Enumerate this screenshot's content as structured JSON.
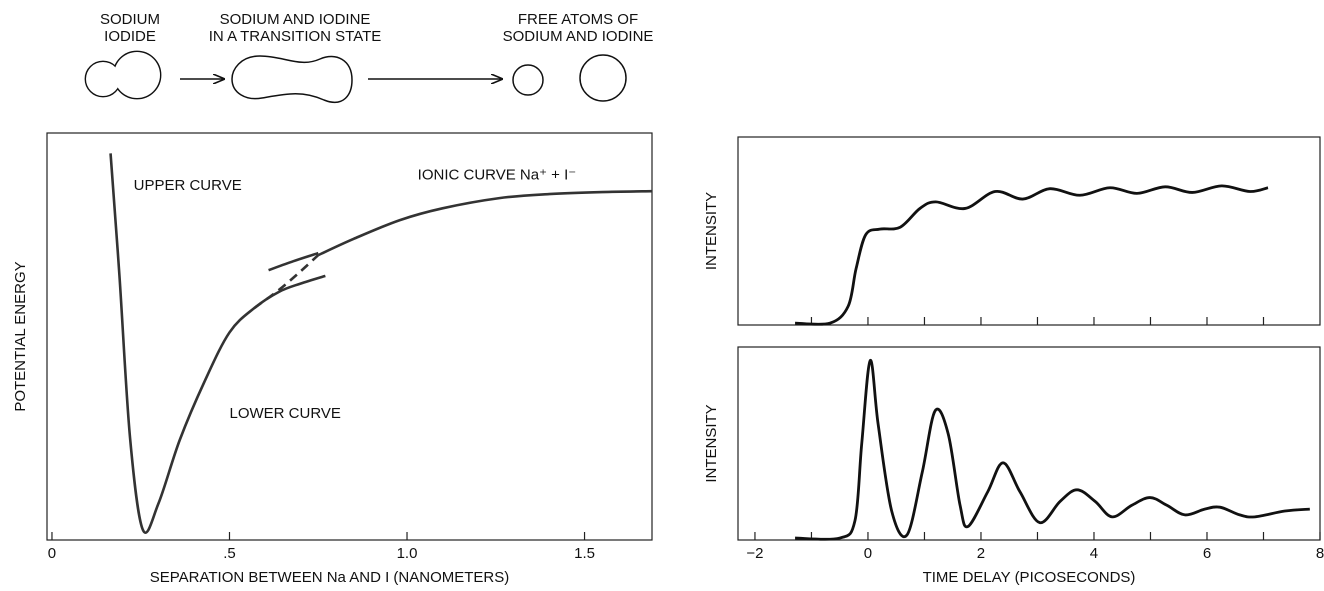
{
  "diagram": {
    "labels": [
      [
        "SODIUM",
        "IODIDE"
      ],
      [
        "SODIUM AND IODINE",
        "IN A TRANSITION STATE"
      ],
      [
        "FREE ATOMS OF",
        "SODIUM AND IODINE"
      ]
    ]
  },
  "chart_data": [
    {
      "type": "line",
      "xlabel": "SEPARATION BETWEEN Na AND I (NANOMETERS)",
      "ylabel": "POTENTIAL ENERGY",
      "xlim": [
        -0.014,
        1.69
      ],
      "ylim": [
        0,
        10
      ],
      "xticks": [
        0,
        {
          "value": 0.5,
          "label": ".5"
        },
        {
          "value": 1,
          "label": "1.0"
        },
        1.5
      ],
      "series": [
        {
          "color": "#333333",
          "dash": false,
          "x": [
            0.165,
            0.19,
            0.22,
            0.256,
            0.3,
            0.36,
            0.43,
            0.5,
            0.57,
            0.64,
            0.7,
            0.77
          ],
          "values": [
            9.5,
            6.5,
            2.5,
            0.25,
            0.9,
            2.46,
            3.9,
            5.1,
            5.7,
            6.1,
            6.3,
            6.49
          ]
        },
        {
          "color": "#333333",
          "dash": true,
          "x": [
            0.57,
            0.64,
            0.7,
            0.75
          ],
          "values": [
            5.7,
            6.15,
            6.6,
            7.0
          ]
        },
        {
          "color": "#333333",
          "dash": false,
          "x": [
            0.61,
            0.68,
            0.75
          ],
          "values": [
            6.63,
            6.85,
            7.05
          ]
        },
        {
          "color": "#333333",
          "dash": false,
          "x": [
            0.75,
            0.85,
            0.98,
            1.1,
            1.26,
            1.4,
            1.55,
            1.69
          ],
          "values": [
            7.0,
            7.4,
            7.86,
            8.15,
            8.4,
            8.5,
            8.55,
            8.57
          ]
        }
      ],
      "annotations": [
        {
          "text": "UPPER CURVE",
          "x": 0.23,
          "y": 8.7
        },
        {
          "text": "IONIC CURVE  Na⁺ + I⁻",
          "x": 1.03,
          "y": 8.95
        },
        {
          "text": "LOWER CURVE",
          "x": 0.5,
          "y": 3.1
        }
      ]
    },
    {
      "type": "line",
      "ylabel": "INTENSITY",
      "xlim": [
        -2.3,
        8.0
      ],
      "ylim": [
        0,
        10
      ],
      "xminorticks": [
        -1,
        0,
        1,
        2,
        3,
        4,
        5,
        6,
        7
      ],
      "series": [
        {
          "color": "#111111",
          "dash": false,
          "x": [
            -1.29,
            -0.67,
            -0.35,
            -0.21,
            -0.04,
            0.21,
            0.57,
            0.92,
            1.2,
            1.72,
            2.25,
            2.74,
            3.22,
            3.75,
            4.28,
            4.76,
            5.26,
            5.74,
            6.26,
            6.76,
            7.08
          ],
          "values": [
            0.1,
            0.1,
            1.0,
            3.0,
            4.8,
            5.1,
            5.2,
            6.2,
            6.55,
            6.2,
            7.1,
            6.7,
            7.25,
            6.9,
            7.3,
            7.0,
            7.35,
            7.05,
            7.4,
            7.1,
            7.3
          ]
        }
      ]
    },
    {
      "type": "line",
      "ylabel": "INTENSITY",
      "xlabel": "TIME DELAY (PICOSECONDS)",
      "xlim": [
        -2.3,
        8.0
      ],
      "ylim": [
        0,
        10
      ],
      "xticks": [
        {
          "value": -2,
          "label": "−2"
        },
        0,
        2,
        4,
        6,
        8
      ],
      "xminorticks": [
        -1,
        1,
        3,
        5,
        7
      ],
      "series": [
        {
          "color": "#111111",
          "dash": false,
          "x": [
            -1.29,
            -0.5,
            -0.23,
            -0.11,
            0.04,
            0.18,
            0.42,
            0.69,
            0.96,
            1.19,
            1.42,
            1.63,
            1.77,
            2.12,
            2.39,
            2.69,
            3.04,
            3.4,
            3.7,
            4.02,
            4.32,
            4.67,
            4.99,
            5.29,
            5.61,
            5.96,
            6.23,
            6.58,
            6.85,
            7.38,
            7.82
          ],
          "values": [
            0.1,
            0.1,
            1.0,
            5.0,
            9.3,
            6.0,
            1.5,
            0.26,
            3.5,
            6.7,
            5.5,
            1.8,
            0.7,
            2.5,
            4.0,
            2.5,
            0.9,
            2.0,
            2.6,
            2.0,
            1.2,
            1.8,
            2.2,
            1.8,
            1.3,
            1.6,
            1.7,
            1.3,
            1.2,
            1.5,
            1.6
          ]
        }
      ]
    }
  ]
}
